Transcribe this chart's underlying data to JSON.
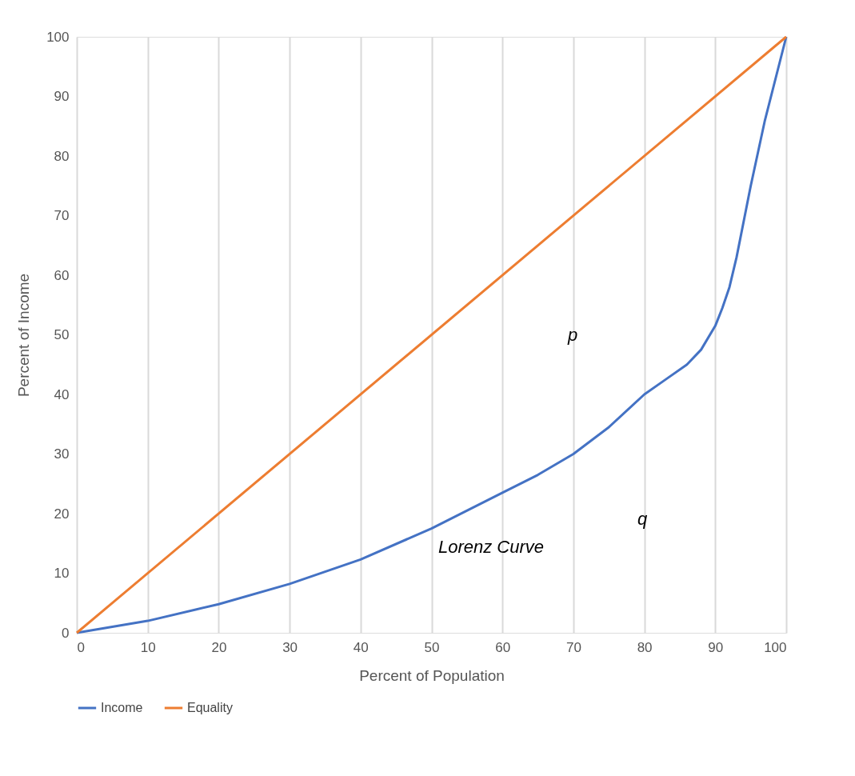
{
  "chart_data": {
    "type": "line",
    "xlabel": "Percent of Population",
    "ylabel": "Percent of Income",
    "xlim": [
      0,
      100
    ],
    "ylim": [
      0,
      100
    ],
    "xticks": [
      0,
      10,
      20,
      30,
      40,
      50,
      60,
      70,
      80,
      90,
      100
    ],
    "yticks": [
      0,
      10,
      20,
      30,
      40,
      50,
      60,
      70,
      80,
      90,
      100
    ],
    "grid": "x",
    "legend": "bottom",
    "marker": "none",
    "line_style": "solid",
    "series": [
      {
        "name": "Income",
        "color": "#4472c4",
        "x": [
          0,
          10,
          20,
          30,
          40,
          50,
          60,
          65,
          70,
          75,
          80,
          83,
          86,
          88,
          90,
          91,
          92,
          93,
          95,
          97,
          100
        ],
        "values": [
          0,
          2,
          4.8,
          8.2,
          12.3,
          17.5,
          23.5,
          26.5,
          30,
          34.5,
          40,
          42.5,
          45,
          47.5,
          51.5,
          54.5,
          58,
          63,
          75,
          86,
          100
        ]
      },
      {
        "name": "Equality",
        "color": "#ed7d31",
        "x": [
          0,
          100
        ],
        "values": [
          0,
          100
        ]
      }
    ],
    "annotations": [
      "p",
      "q",
      "Lorenz Curve"
    ]
  }
}
